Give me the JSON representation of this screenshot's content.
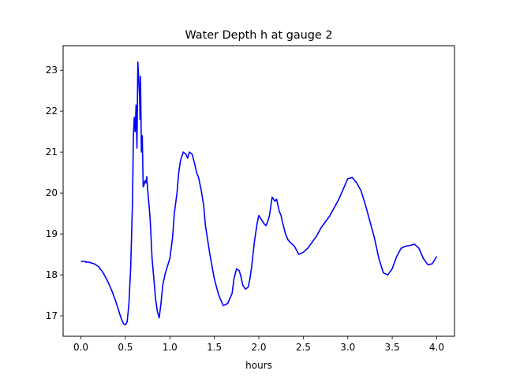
{
  "chart_data": {
    "type": "line",
    "title": "Water Depth h at gauge 2",
    "xlabel": "hours",
    "ylabel": "",
    "xlim": [
      -0.2,
      4.2
    ],
    "ylim": [
      16.5,
      23.6
    ],
    "xticks": [
      0.0,
      0.5,
      1.0,
      1.5,
      2.0,
      2.5,
      3.0,
      3.5,
      4.0
    ],
    "xtick_labels": [
      "0.0",
      "0.5",
      "1.0",
      "1.5",
      "2.0",
      "2.5",
      "3.0",
      "3.5",
      "4.0"
    ],
    "yticks": [
      17,
      18,
      19,
      20,
      21,
      22,
      23
    ],
    "ytick_labels": [
      "17",
      "18",
      "19",
      "20",
      "21",
      "22",
      "23"
    ],
    "grid": false,
    "series": [
      {
        "name": "",
        "color": "#0000ff",
        "x": [
          0.0,
          0.05,
          0.06,
          0.07,
          0.1,
          0.15,
          0.2,
          0.25,
          0.3,
          0.35,
          0.4,
          0.45,
          0.48,
          0.5,
          0.52,
          0.54,
          0.56,
          0.58,
          0.59,
          0.6,
          0.61,
          0.62,
          0.63,
          0.64,
          0.65,
          0.66,
          0.665,
          0.67,
          0.68,
          0.69,
          0.7,
          0.71,
          0.72,
          0.73,
          0.74,
          0.75,
          0.76,
          0.77,
          0.78,
          0.8,
          0.82,
          0.84,
          0.86,
          0.88,
          0.9,
          0.92,
          0.95,
          1.0,
          1.03,
          1.05,
          1.08,
          1.1,
          1.12,
          1.15,
          1.18,
          1.2,
          1.22,
          1.25,
          1.28,
          1.3,
          1.32,
          1.35,
          1.38,
          1.4,
          1.45,
          1.5,
          1.55,
          1.6,
          1.65,
          1.7,
          1.72,
          1.75,
          1.78,
          1.8,
          1.82,
          1.85,
          1.88,
          1.9,
          1.92,
          1.95,
          1.98,
          2.0,
          2.03,
          2.06,
          2.08,
          2.1,
          2.12,
          2.15,
          2.18,
          2.2,
          2.22,
          2.23,
          2.25,
          2.27,
          2.3,
          2.33,
          2.35,
          2.4,
          2.45,
          2.5,
          2.55,
          2.6,
          2.65,
          2.7,
          2.75,
          2.8,
          2.85,
          2.9,
          2.95,
          3.0,
          3.05,
          3.1,
          3.15,
          3.2,
          3.25,
          3.3,
          3.35,
          3.4,
          3.45,
          3.5,
          3.55,
          3.6,
          3.65,
          3.7,
          3.75,
          3.8,
          3.85,
          3.9,
          3.95,
          4.0
        ],
        "y": [
          18.33,
          18.33,
          18.3,
          18.32,
          18.3,
          18.27,
          18.2,
          18.05,
          17.85,
          17.6,
          17.3,
          16.95,
          16.8,
          16.78,
          16.85,
          17.3,
          18.2,
          19.8,
          21.4,
          21.85,
          21.5,
          22.15,
          21.1,
          23.2,
          22.8,
          22.3,
          21.8,
          22.85,
          21.0,
          21.4,
          20.15,
          20.2,
          20.3,
          20.25,
          20.4,
          20.1,
          19.85,
          19.6,
          19.3,
          18.4,
          17.9,
          17.4,
          17.1,
          16.95,
          17.3,
          17.75,
          18.05,
          18.4,
          18.9,
          19.5,
          20.0,
          20.5,
          20.8,
          21.0,
          20.95,
          20.85,
          21.0,
          20.95,
          20.7,
          20.5,
          20.4,
          20.1,
          19.7,
          19.2,
          18.5,
          17.9,
          17.5,
          17.25,
          17.3,
          17.55,
          17.9,
          18.15,
          18.1,
          17.95,
          17.75,
          17.65,
          17.7,
          17.9,
          18.2,
          18.8,
          19.25,
          19.45,
          19.35,
          19.25,
          19.2,
          19.3,
          19.45,
          19.9,
          19.8,
          19.85,
          19.65,
          19.55,
          19.45,
          19.25,
          19.0,
          18.85,
          18.8,
          18.7,
          18.5,
          18.55,
          18.65,
          18.8,
          18.95,
          19.15,
          19.3,
          19.45,
          19.65,
          19.85,
          20.1,
          20.35,
          20.38,
          20.25,
          20.05,
          19.7,
          19.3,
          18.9,
          18.4,
          18.05,
          18.0,
          18.15,
          18.45,
          18.65,
          18.7,
          18.72,
          18.75,
          18.65,
          18.4,
          18.25,
          18.27,
          18.45
        ]
      }
    ]
  }
}
